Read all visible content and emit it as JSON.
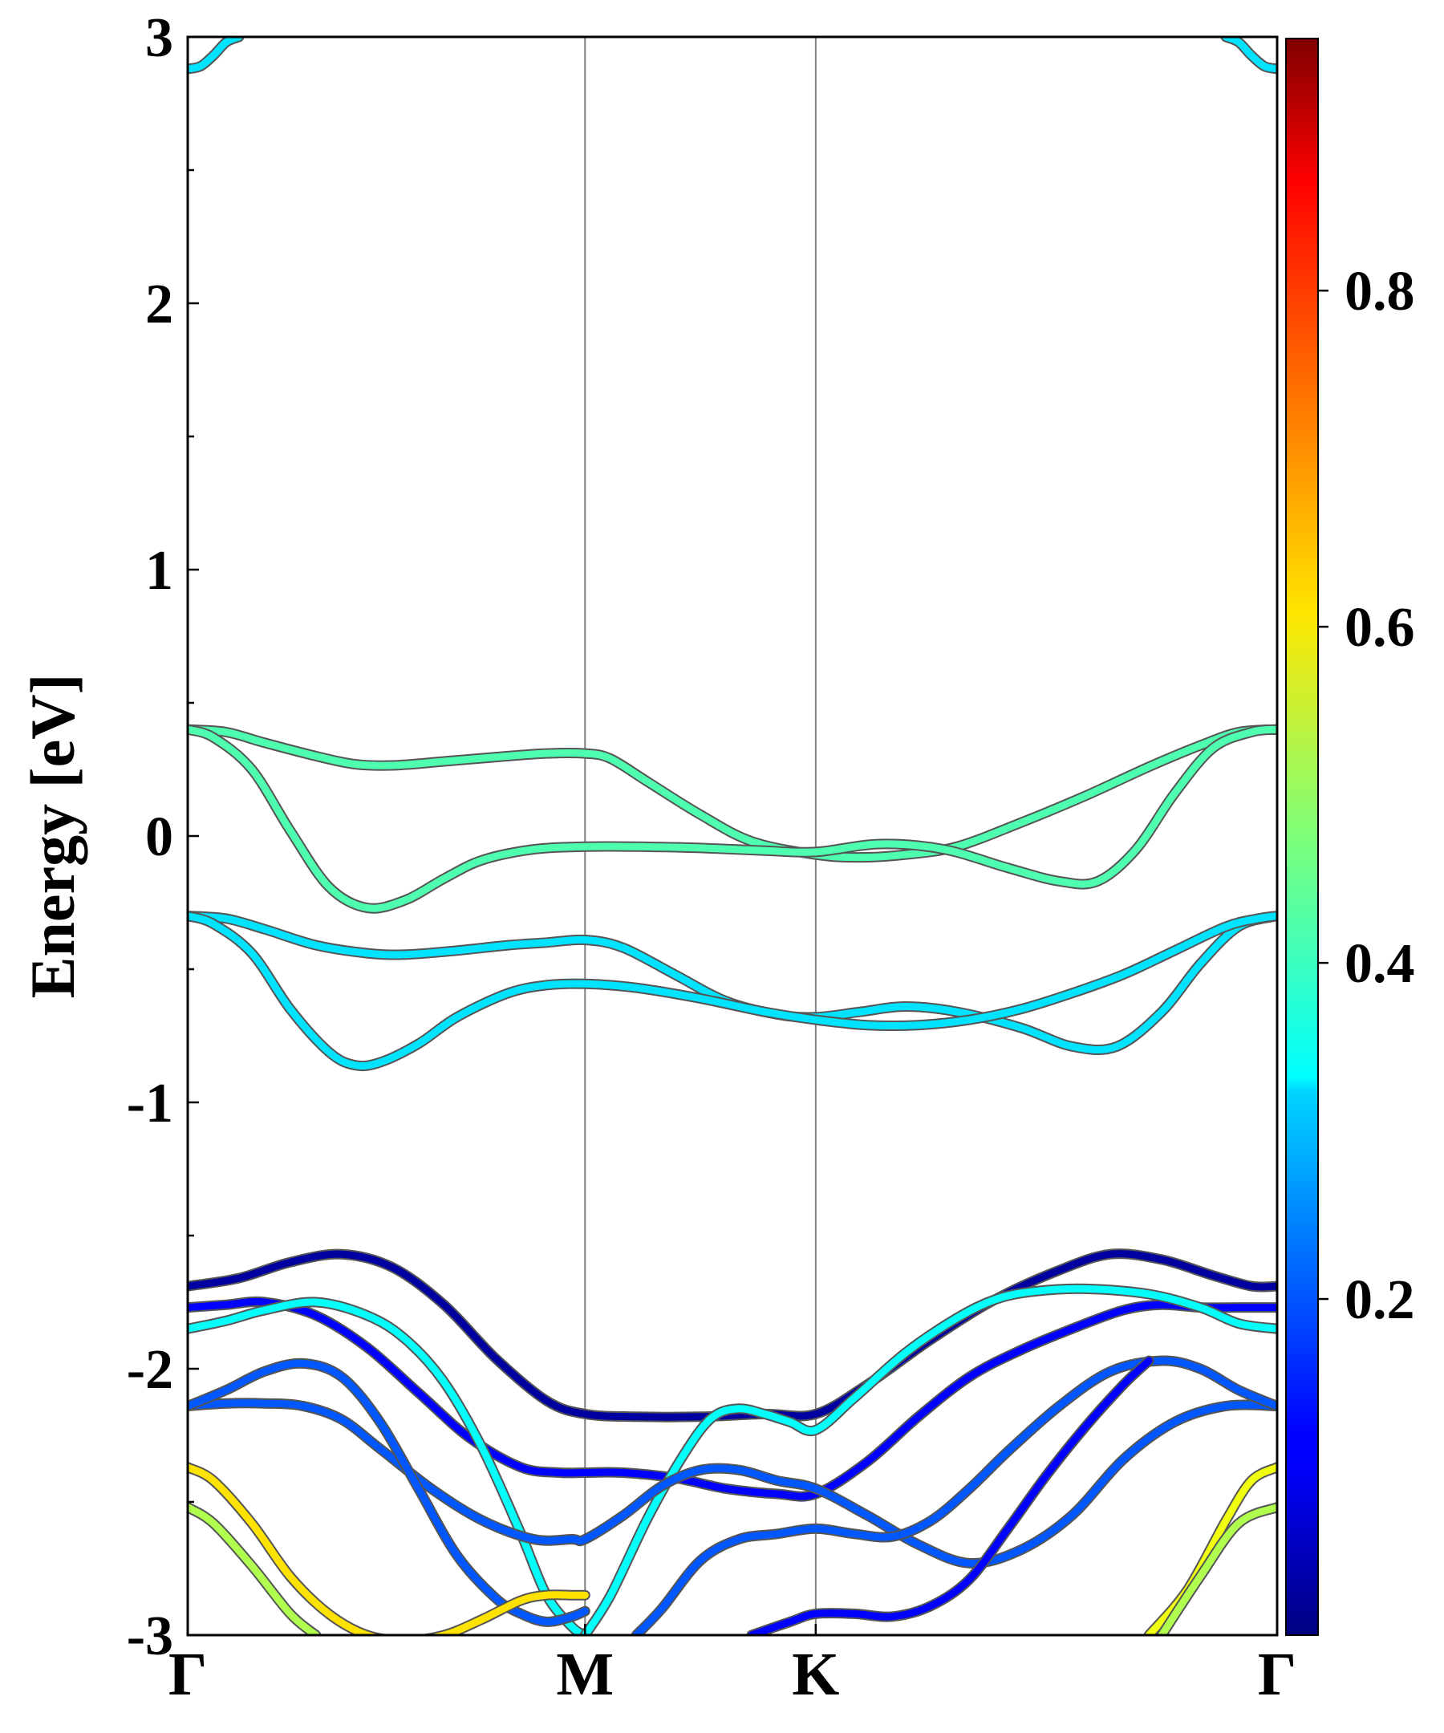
{
  "chart_data": {
    "type": "line",
    "title": "",
    "ylabel": "Energy [eV]",
    "xlabel": "",
    "ylim": [
      -3,
      3
    ],
    "xlim": [
      0,
      1.7
    ],
    "x_ticks": [
      {
        "label": "Γ",
        "x": 0
      },
      {
        "label": "M",
        "x": 0.62
      },
      {
        "label": "K",
        "x": 0.98
      },
      {
        "label": "Γ",
        "x": 1.7
      }
    ],
    "y_ticks": [
      -3,
      -2,
      -1,
      0,
      1,
      2,
      3
    ],
    "y_minor_step": 0.5,
    "vertical_lines_at": [
      0.62,
      0.98
    ],
    "colorbar": {
      "colormap": "jet",
      "range": [
        0,
        0.95
      ],
      "ticks": [
        0.2,
        0.4,
        0.6,
        0.8
      ],
      "tick_labels": [
        "0.2",
        "0.4",
        "0.6",
        "0.8"
      ]
    },
    "series": [
      {
        "x": [
          0,
          0.06,
          0.12,
          0.2,
          0.26,
          0.32,
          0.4,
          0.5,
          0.56,
          0.62,
          0.66,
          0.72,
          0.8,
          0.88,
          0.98,
          1.05,
          1.12,
          1.2,
          1.3,
          1.4,
          1.5,
          1.58,
          1.64,
          1.7
        ],
        "y": [
          0.4,
          0.39,
          0.35,
          0.3,
          0.27,
          0.265,
          0.28,
          0.3,
          0.31,
          0.31,
          0.29,
          0.2,
          0.08,
          -0.02,
          -0.07,
          -0.08,
          -0.07,
          -0.04,
          0.05,
          0.15,
          0.26,
          0.34,
          0.39,
          0.4
        ],
        "w": 0.43
      },
      {
        "x": [
          0,
          0.04,
          0.1,
          0.16,
          0.22,
          0.28,
          0.34,
          0.4,
          0.46,
          0.54,
          0.62,
          0.7,
          0.8,
          0.9,
          0.98,
          1.08,
          1.18,
          1.28,
          1.36,
          1.42,
          1.48,
          1.54,
          1.6,
          1.66,
          1.7
        ],
        "y": [
          0.4,
          0.37,
          0.25,
          0.02,
          -0.19,
          -0.27,
          -0.24,
          -0.16,
          -0.09,
          -0.05,
          -0.04,
          -0.04,
          -0.045,
          -0.055,
          -0.06,
          -0.03,
          -0.05,
          -0.12,
          -0.17,
          -0.17,
          -0.05,
          0.16,
          0.33,
          0.39,
          0.4
        ],
        "w": 0.43
      },
      {
        "x": [
          0,
          0.06,
          0.12,
          0.2,
          0.28,
          0.34,
          0.42,
          0.5,
          0.56,
          0.62,
          0.68,
          0.76,
          0.84,
          0.92,
          0.98,
          1.05,
          1.12,
          1.2,
          1.3,
          1.38,
          1.45,
          1.52,
          1.58,
          1.64,
          1.7
        ],
        "y": [
          -0.3,
          -0.31,
          -0.35,
          -0.41,
          -0.44,
          -0.445,
          -0.43,
          -0.41,
          -0.4,
          -0.39,
          -0.42,
          -0.52,
          -0.62,
          -0.67,
          -0.68,
          -0.66,
          -0.64,
          -0.66,
          -0.72,
          -0.79,
          -0.79,
          -0.66,
          -0.48,
          -0.34,
          -0.3
        ],
        "w": 0.33
      },
      {
        "x": [
          0,
          0.04,
          0.1,
          0.16,
          0.22,
          0.26,
          0.3,
          0.36,
          0.42,
          0.5,
          0.56,
          0.62,
          0.7,
          0.8,
          0.9,
          0.98,
          1.06,
          1.14,
          1.22,
          1.3,
          1.38,
          1.46,
          1.54,
          1.62,
          1.67,
          1.7
        ],
        "y": [
          -0.3,
          -0.33,
          -0.44,
          -0.65,
          -0.81,
          -0.86,
          -0.85,
          -0.78,
          -0.68,
          -0.59,
          -0.56,
          -0.555,
          -0.57,
          -0.61,
          -0.66,
          -0.69,
          -0.71,
          -0.71,
          -0.69,
          -0.65,
          -0.59,
          -0.52,
          -0.43,
          -0.34,
          -0.31,
          -0.3
        ],
        "w": 0.33
      },
      {
        "x": [
          0,
          0.08,
          0.16,
          0.24,
          0.32,
          0.4,
          0.48,
          0.56,
          0.62,
          0.7,
          0.8,
          0.9,
          0.98,
          1.06,
          1.16,
          1.26,
          1.36,
          1.44,
          1.52,
          1.6,
          1.66,
          1.7
        ],
        "y": [
          -1.69,
          -1.66,
          -1.6,
          -1.57,
          -1.62,
          -1.76,
          -1.96,
          -2.12,
          -2.17,
          -2.18,
          -2.18,
          -2.17,
          -2.17,
          -2.06,
          -1.89,
          -1.74,
          -1.63,
          -1.57,
          -1.59,
          -1.65,
          -1.69,
          -1.69
        ],
        "w": 0.03
      },
      {
        "x": [
          0,
          0.06,
          0.12,
          0.2,
          0.28,
          0.36,
          0.44,
          0.52,
          0.58,
          0.62,
          0.68,
          0.76,
          0.84,
          0.92,
          0.98,
          1.06,
          1.14,
          1.22,
          1.3,
          1.38,
          1.46,
          1.52,
          1.58,
          1.64,
          1.7
        ],
        "y": [
          -1.77,
          -1.76,
          -1.75,
          -1.8,
          -1.92,
          -2.09,
          -2.26,
          -2.37,
          -2.39,
          -2.39,
          -2.39,
          -2.41,
          -2.45,
          -2.47,
          -2.47,
          -2.35,
          -2.18,
          -2.03,
          -1.93,
          -1.85,
          -1.78,
          -1.76,
          -1.77,
          -1.77,
          -1.77
        ],
        "w": 0.12
      },
      {
        "x": [
          0,
          0.06,
          0.12,
          0.2,
          0.28,
          0.34,
          0.4,
          0.46,
          0.52,
          0.56,
          0.6,
          0.62
        ],
        "y": [
          -1.85,
          -1.82,
          -1.78,
          -1.75,
          -1.8,
          -1.89,
          -2.05,
          -2.3,
          -2.62,
          -2.85,
          -2.97,
          -3.0
        ],
        "w": 0.36
      },
      {
        "x": [
          0.62,
          0.66,
          0.72,
          0.78,
          0.82,
          0.86,
          0.9,
          0.94,
          0.98,
          1.04,
          1.12,
          1.2,
          1.26,
          1.32,
          1.4,
          1.5,
          1.58,
          1.64,
          1.7
        ],
        "y": [
          -3.0,
          -2.85,
          -2.55,
          -2.3,
          -2.18,
          -2.15,
          -2.17,
          -2.2,
          -2.23,
          -2.11,
          -1.94,
          -1.81,
          -1.74,
          -1.71,
          -1.7,
          -1.72,
          -1.77,
          -1.83,
          -1.85
        ],
        "w": 0.36
      },
      {
        "x": [
          0,
          0.06,
          0.12,
          0.18,
          0.24,
          0.3,
          0.38,
          0.46,
          0.54,
          0.6,
          0.62,
          0.68,
          0.74,
          0.8,
          0.86,
          0.92,
          0.98,
          1.06,
          1.14,
          1.22,
          1.3,
          1.38,
          1.46,
          1.54,
          1.62,
          1.7
        ],
        "y": [
          -2.14,
          -2.13,
          -2.13,
          -2.14,
          -2.19,
          -2.3,
          -2.45,
          -2.57,
          -2.64,
          -2.64,
          -2.64,
          -2.55,
          -2.44,
          -2.38,
          -2.38,
          -2.42,
          -2.45,
          -2.55,
          -2.66,
          -2.73,
          -2.68,
          -2.55,
          -2.34,
          -2.2,
          -2.14,
          -2.14
        ],
        "w": 0.2
      },
      {
        "x": [
          0,
          0.06,
          0.12,
          0.18,
          0.24,
          0.3,
          0.36,
          0.42,
          0.48,
          0.52,
          0.56,
          0.6,
          0.62
        ],
        "y": [
          -2.14,
          -2.08,
          -2.01,
          -1.98,
          -2.03,
          -2.2,
          -2.45,
          -2.7,
          -2.86,
          -2.92,
          -2.95,
          -2.93,
          -2.91
        ],
        "w": 0.2
      },
      {
        "x": [
          0.7,
          0.74,
          0.8,
          0.86,
          0.92,
          0.98,
          1.04,
          1.1,
          1.16,
          1.22,
          1.28,
          1.36,
          1.44,
          1.52,
          1.58,
          1.64,
          1.7
        ],
        "y": [
          -3.0,
          -2.9,
          -2.72,
          -2.64,
          -2.62,
          -2.6,
          -2.62,
          -2.63,
          -2.57,
          -2.45,
          -2.31,
          -2.14,
          -2.01,
          -1.97,
          -2.0,
          -2.08,
          -2.14
        ],
        "w": 0.2
      },
      {
        "x": [
          0.88,
          0.94,
          0.98,
          1.04,
          1.1,
          1.16,
          1.22,
          1.28,
          1.34,
          1.4,
          1.46,
          1.5
        ],
        "y": [
          -3.0,
          -2.95,
          -2.92,
          -2.92,
          -2.93,
          -2.89,
          -2.79,
          -2.6,
          -2.4,
          -2.22,
          -2.06,
          -1.97
        ],
        "w": 0.12
      },
      {
        "x": [
          0,
          0.04,
          0.1,
          0.16,
          0.22,
          0.28,
          0.34,
          0.4,
          0.46,
          0.52,
          0.56,
          0.6,
          0.62
        ],
        "y": [
          -2.37,
          -2.42,
          -2.58,
          -2.78,
          -2.92,
          -3.0,
          -3.02,
          -3.0,
          -2.94,
          -2.87,
          -2.85,
          -2.85,
          -2.85
        ],
        "w": 0.62
      },
      {
        "x": [
          0,
          0.04,
          0.1,
          0.16,
          0.2
        ],
        "y": [
          -2.52,
          -2.58,
          -2.74,
          -2.92,
          -3.0
        ],
        "w": 0.52
      },
      {
        "x": [
          1.5,
          1.56,
          1.62,
          1.66,
          1.7
        ],
        "y": [
          -3.0,
          -2.83,
          -2.57,
          -2.42,
          -2.37
        ],
        "w": 0.58
      },
      {
        "x": [
          1.52,
          1.58,
          1.64,
          1.7
        ],
        "y": [
          -3.0,
          -2.78,
          -2.58,
          -2.52
        ],
        "w": 0.52
      },
      {
        "x": [
          0,
          0.02,
          0.04,
          0.06,
          0.08
        ],
        "y": [
          2.88,
          2.89,
          2.93,
          2.98,
          3.0
        ],
        "w": 0.33
      },
      {
        "x": [
          1.62,
          1.64,
          1.66,
          1.68,
          1.7
        ],
        "y": [
          3.0,
          2.98,
          2.93,
          2.89,
          2.88
        ],
        "w": 0.33
      }
    ]
  }
}
